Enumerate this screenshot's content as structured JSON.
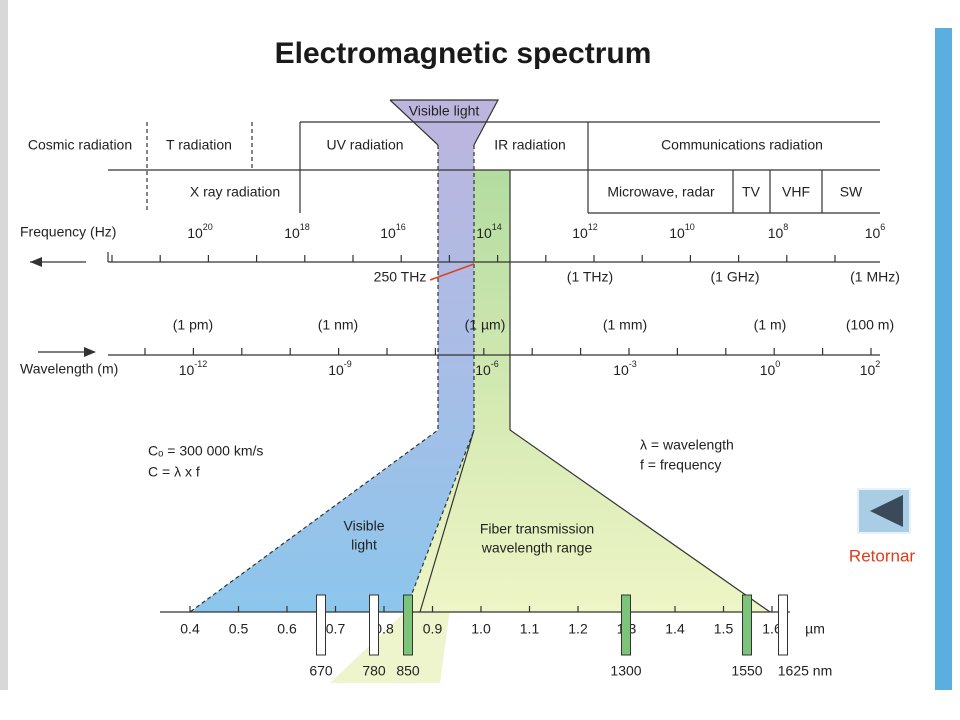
{
  "title": "Electromagnetic spectrum",
  "visible_light_label": "Visible light",
  "bands_top": [
    "Cosmic radiation",
    "T radiation",
    "UV radiation",
    "IR radiation",
    "Communications radiation"
  ],
  "bands_bottom": [
    "X ray radiation",
    "Microwave, radar",
    "TV",
    "VHF",
    "SW"
  ],
  "frequency": {
    "label": "Frequency (Hz)",
    "ticks": [
      {
        "base": "10",
        "exp": "20"
      },
      {
        "base": "10",
        "exp": "18"
      },
      {
        "base": "10",
        "exp": "16"
      },
      {
        "base": "10",
        "exp": "14"
      },
      {
        "base": "10",
        "exp": "12"
      },
      {
        "base": "10",
        "exp": "10"
      },
      {
        "base": "10",
        "exp": "8"
      },
      {
        "base": "10",
        "exp": "6"
      }
    ],
    "notes": [
      "250 THz",
      "(1 THz)",
      "(1 GHz)",
      "(1 MHz)"
    ]
  },
  "wavelength": {
    "label": "Wavelength (m)",
    "notes": [
      "(1 pm)",
      "(1 nm)",
      "(1 µm)",
      "(1 mm)",
      "(1 m)",
      "(100 m)"
    ],
    "ticks": [
      {
        "base": "10",
        "exp": "-12"
      },
      {
        "base": "10",
        "exp": "-9"
      },
      {
        "base": "10",
        "exp": "-6"
      },
      {
        "base": "10",
        "exp": "-3"
      },
      {
        "base": "10",
        "exp": "0"
      },
      {
        "base": "10",
        "exp": "2"
      }
    ]
  },
  "formulas": [
    "Cₒ = 300 000 km/s",
    "C = λ x f"
  ],
  "legend": [
    "λ = wavelength",
    "f = frequency"
  ],
  "visible_range_label": [
    "Visible",
    "light"
  ],
  "fiber_label": [
    "Fiber transmission",
    "wavelength range"
  ],
  "scale": {
    "ticks": [
      "0.4",
      "0.5",
      "0.6",
      "0.7",
      "0.8",
      "0.9",
      "1.0",
      "1.1",
      "1.2",
      "1.3",
      "1.4",
      "1.5",
      "1.6"
    ],
    "unit": "µm"
  },
  "markers": [
    {
      "label": "670",
      "highlight": false
    },
    {
      "label": "780",
      "highlight": false
    },
    {
      "label": "850",
      "highlight": true
    },
    {
      "label": "1300",
      "highlight": true
    },
    {
      "label": "1550",
      "highlight": true
    },
    {
      "label": "1625 nm",
      "highlight": false
    }
  ],
  "button": {
    "label": "Retornar"
  }
}
